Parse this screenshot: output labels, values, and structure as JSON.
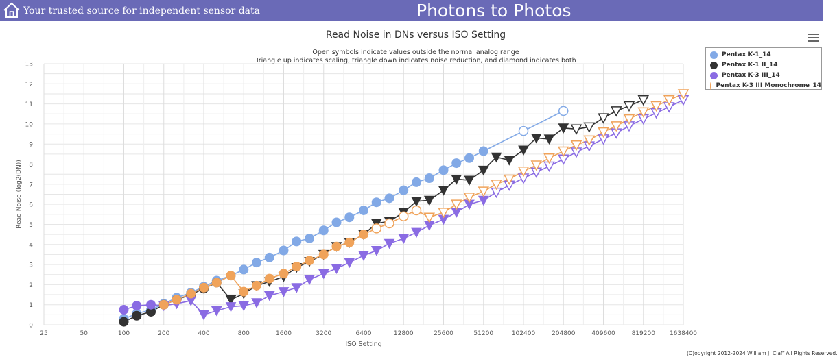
{
  "header": {
    "tagline": "Your trusted source for independent sensor data",
    "brand": "Photons to Photos",
    "home_icon": "home-icon"
  },
  "menu_icon": "hamburger-menu-icon",
  "copyright": "(C)opyright 2012-2024 William J. Claff All Rights Reserved.",
  "colors": {
    "header_bg": "#6a6ab7",
    "grid": "#e2e2e2"
  },
  "chart_data": {
    "type": "line",
    "title": "Read Noise in DNs versus ISO Setting",
    "subtitle_1": "Open symbols indicate values outside the normal analog range",
    "subtitle_2": "Triangle up indicates scaling, triangle down indicates noise reduction, and diamond indicates both",
    "xlabel": "ISO Setting",
    "ylabel": "Read Noise (log2(DN))",
    "x_scale": "log2",
    "xlim": [
      25,
      1638400
    ],
    "ylim": [
      0,
      13
    ],
    "x_ticks": [
      25,
      50,
      100,
      200,
      400,
      800,
      1600,
      3200,
      6400,
      12800,
      25600,
      51200,
      102400,
      204800,
      409600,
      819200,
      1638400
    ],
    "y_ticks": [
      0,
      1,
      2,
      3,
      4,
      5,
      6,
      7,
      8,
      9,
      10,
      11,
      12,
      13
    ],
    "grid": true,
    "legend_position": "top-right",
    "series": [
      {
        "name": "Pentax K-1_14",
        "color": "#82a9e6",
        "line_color": "#82a9e6",
        "points": [
          [
            100,
            0.3,
            "circle",
            "filled"
          ],
          [
            125,
            0.55,
            "circle",
            "filled"
          ],
          [
            160,
            0.75,
            "circle",
            "filled"
          ],
          [
            200,
            1.05,
            "circle",
            "filled"
          ],
          [
            250,
            1.35,
            "circle",
            "filled"
          ],
          [
            320,
            1.6,
            "circle",
            "filled"
          ],
          [
            400,
            1.9,
            "circle",
            "filled"
          ],
          [
            500,
            2.2,
            "circle",
            "filled"
          ],
          [
            640,
            2.45,
            "circle",
            "filled"
          ],
          [
            800,
            2.75,
            "circle",
            "filled"
          ],
          [
            1000,
            3.1,
            "circle",
            "filled"
          ],
          [
            1250,
            3.35,
            "circle",
            "filled"
          ],
          [
            1600,
            3.7,
            "circle",
            "filled"
          ],
          [
            2000,
            4.15,
            "circle",
            "filled"
          ],
          [
            2500,
            4.3,
            "circle",
            "filled"
          ],
          [
            3200,
            4.7,
            "circle",
            "filled"
          ],
          [
            4000,
            5.1,
            "circle",
            "filled"
          ],
          [
            5000,
            5.35,
            "circle",
            "filled"
          ],
          [
            6400,
            5.7,
            "circle",
            "filled"
          ],
          [
            8000,
            6.1,
            "circle",
            "filled"
          ],
          [
            10000,
            6.3,
            "circle",
            "filled"
          ],
          [
            12800,
            6.7,
            "circle",
            "filled"
          ],
          [
            16000,
            7.1,
            "circle",
            "filled"
          ],
          [
            20000,
            7.3,
            "circle",
            "filled"
          ],
          [
            25600,
            7.7,
            "circle",
            "filled"
          ],
          [
            32000,
            8.05,
            "circle",
            "filled"
          ],
          [
            40000,
            8.3,
            "circle",
            "filled"
          ],
          [
            51200,
            8.65,
            "circle",
            "filled"
          ],
          [
            102400,
            9.65,
            "circle",
            "open"
          ],
          [
            204800,
            10.65,
            "circle",
            "open"
          ]
        ]
      },
      {
        "name": "Pentax K-1 II_14",
        "color": "#333333",
        "line_color": "#333333",
        "points": [
          [
            100,
            0.15,
            "circle",
            "filled"
          ],
          [
            125,
            0.45,
            "circle",
            "filled"
          ],
          [
            160,
            0.65,
            "circle",
            "filled"
          ],
          [
            200,
            1.0,
            "circle",
            "filled"
          ],
          [
            250,
            1.25,
            "circle",
            "filled"
          ],
          [
            320,
            1.5,
            "circle",
            "filled"
          ],
          [
            400,
            1.8,
            "circle",
            "filled"
          ],
          [
            500,
            2.1,
            "circle",
            "filled"
          ],
          [
            640,
            1.25,
            "triangle-down",
            "filled"
          ],
          [
            800,
            1.55,
            "triangle-down",
            "filled"
          ],
          [
            1000,
            1.95,
            "triangle-down",
            "filled"
          ],
          [
            1250,
            2.15,
            "triangle-down",
            "filled"
          ],
          [
            1600,
            2.4,
            "triangle-down",
            "filled"
          ],
          [
            2000,
            2.85,
            "triangle-down",
            "filled"
          ],
          [
            2500,
            3.15,
            "triangle-down",
            "filled"
          ],
          [
            3200,
            3.5,
            "triangle-down",
            "filled"
          ],
          [
            4000,
            3.9,
            "triangle-down",
            "filled"
          ],
          [
            5000,
            4.1,
            "triangle-down",
            "filled"
          ],
          [
            6400,
            4.5,
            "triangle-down",
            "filled"
          ],
          [
            8000,
            5.05,
            "triangle-down",
            "filled"
          ],
          [
            10000,
            5.15,
            "triangle-down",
            "filled"
          ],
          [
            12800,
            5.6,
            "triangle-down",
            "filled"
          ],
          [
            16000,
            6.15,
            "triangle-down",
            "filled"
          ],
          [
            20000,
            6.2,
            "triangle-down",
            "filled"
          ],
          [
            25600,
            6.7,
            "triangle-down",
            "filled"
          ],
          [
            32000,
            7.25,
            "triangle-down",
            "filled"
          ],
          [
            40000,
            7.2,
            "triangle-down",
            "filled"
          ],
          [
            51200,
            7.7,
            "triangle-down",
            "filled"
          ],
          [
            64000,
            8.35,
            "triangle-down",
            "filled"
          ],
          [
            80000,
            8.2,
            "triangle-down",
            "filled"
          ],
          [
            102400,
            8.7,
            "triangle-down",
            "filled"
          ],
          [
            128000,
            9.3,
            "triangle-down",
            "filled"
          ],
          [
            160000,
            9.25,
            "triangle-down",
            "filled"
          ],
          [
            204800,
            9.8,
            "triangle-down",
            "filled"
          ],
          [
            256000,
            9.75,
            "triangle-down",
            "open"
          ],
          [
            320000,
            9.85,
            "triangle-down",
            "open"
          ],
          [
            409600,
            10.3,
            "triangle-down",
            "open"
          ],
          [
            512000,
            10.65,
            "triangle-down",
            "open"
          ],
          [
            640000,
            10.9,
            "triangle-down",
            "open"
          ],
          [
            819200,
            11.2,
            "triangle-down",
            "open"
          ]
        ]
      },
      {
        "name": "Pentax K-3 III_14",
        "color": "#8a6be3",
        "line_color": "#8a6be3",
        "points": [
          [
            100,
            0.75,
            "circle",
            "filled"
          ],
          [
            125,
            0.95,
            "circle",
            "filled"
          ],
          [
            160,
            1.0,
            "circle",
            "filled"
          ],
          [
            200,
            0.95,
            "triangle-down",
            "filled"
          ],
          [
            250,
            1.05,
            "triangle-down",
            "filled"
          ],
          [
            320,
            1.2,
            "triangle-down",
            "filled"
          ],
          [
            400,
            0.5,
            "triangle-down",
            "filled"
          ],
          [
            500,
            0.7,
            "triangle-down",
            "filled"
          ],
          [
            640,
            0.9,
            "triangle-down",
            "filled"
          ],
          [
            800,
            0.95,
            "triangle-down",
            "filled"
          ],
          [
            1000,
            1.1,
            "triangle-down",
            "filled"
          ],
          [
            1250,
            1.45,
            "triangle-down",
            "filled"
          ],
          [
            1600,
            1.65,
            "triangle-down",
            "filled"
          ],
          [
            2000,
            1.85,
            "triangle-down",
            "filled"
          ],
          [
            2500,
            2.25,
            "triangle-down",
            "filled"
          ],
          [
            3200,
            2.55,
            "triangle-down",
            "filled"
          ],
          [
            4000,
            2.8,
            "triangle-down",
            "filled"
          ],
          [
            5000,
            3.1,
            "triangle-down",
            "filled"
          ],
          [
            6400,
            3.45,
            "triangle-down",
            "filled"
          ],
          [
            8000,
            3.7,
            "triangle-down",
            "filled"
          ],
          [
            10000,
            4.05,
            "triangle-down",
            "filled"
          ],
          [
            12800,
            4.3,
            "triangle-down",
            "filled"
          ],
          [
            16000,
            4.6,
            "triangle-down",
            "filled"
          ],
          [
            20000,
            4.95,
            "triangle-down",
            "filled"
          ],
          [
            25600,
            5.25,
            "triangle-down",
            "filled"
          ],
          [
            32000,
            5.6,
            "triangle-down",
            "filled"
          ],
          [
            40000,
            6.0,
            "triangle-down",
            "filled"
          ],
          [
            51200,
            6.2,
            "triangle-down",
            "filled"
          ],
          [
            64000,
            6.6,
            "triangle-down",
            "open"
          ],
          [
            80000,
            6.95,
            "triangle-down",
            "open"
          ],
          [
            102400,
            7.3,
            "triangle-down",
            "open"
          ],
          [
            128000,
            7.6,
            "triangle-down",
            "open"
          ],
          [
            160000,
            7.9,
            "triangle-down",
            "open"
          ],
          [
            204800,
            8.25,
            "triangle-down",
            "open"
          ],
          [
            256000,
            8.6,
            "triangle-down",
            "open"
          ],
          [
            320000,
            8.9,
            "triangle-down",
            "open"
          ],
          [
            409600,
            9.25,
            "triangle-down",
            "open"
          ],
          [
            512000,
            9.55,
            "triangle-down",
            "open"
          ],
          [
            640000,
            9.9,
            "triangle-down",
            "open"
          ],
          [
            819200,
            10.25,
            "triangle-down",
            "open"
          ],
          [
            1024000,
            10.55,
            "triangle-down",
            "open"
          ],
          [
            1280000,
            10.85,
            "triangle-down",
            "open"
          ],
          [
            1638400,
            11.2,
            "triangle-down",
            "open"
          ]
        ]
      },
      {
        "name": "Pentax K-3 III Monochrome_14",
        "color": "#f0a35a",
        "line_color": "#f0a35a",
        "points": [
          [
            200,
            1.0,
            "circle",
            "filled"
          ],
          [
            250,
            1.25,
            "circle",
            "filled"
          ],
          [
            320,
            1.55,
            "circle",
            "filled"
          ],
          [
            400,
            1.85,
            "circle",
            "filled"
          ],
          [
            500,
            2.1,
            "circle",
            "filled"
          ],
          [
            640,
            2.45,
            "circle",
            "filled"
          ],
          [
            800,
            1.65,
            "circle",
            "filled"
          ],
          [
            1000,
            1.95,
            "circle",
            "filled"
          ],
          [
            1250,
            2.3,
            "circle",
            "filled"
          ],
          [
            1600,
            2.55,
            "circle",
            "filled"
          ],
          [
            2000,
            2.9,
            "circle",
            "filled"
          ],
          [
            2500,
            3.2,
            "circle",
            "filled"
          ],
          [
            3200,
            3.5,
            "circle",
            "filled"
          ],
          [
            4000,
            3.9,
            "circle",
            "filled"
          ],
          [
            5000,
            4.1,
            "circle",
            "filled"
          ],
          [
            6400,
            4.5,
            "circle",
            "filled"
          ],
          [
            8000,
            4.8,
            "circle",
            "open"
          ],
          [
            10000,
            5.05,
            "circle",
            "open"
          ],
          [
            12800,
            5.4,
            "circle",
            "open"
          ],
          [
            16000,
            5.7,
            "circle",
            "open"
          ],
          [
            20000,
            5.35,
            "triangle-down",
            "open"
          ],
          [
            25600,
            5.6,
            "triangle-down",
            "open"
          ],
          [
            32000,
            6.0,
            "triangle-down",
            "open"
          ],
          [
            40000,
            6.35,
            "triangle-down",
            "open"
          ],
          [
            51200,
            6.65,
            "triangle-down",
            "open"
          ],
          [
            64000,
            7.0,
            "triangle-down",
            "open"
          ],
          [
            80000,
            7.25,
            "triangle-down",
            "open"
          ],
          [
            102400,
            7.65,
            "triangle-down",
            "open"
          ],
          [
            128000,
            7.95,
            "triangle-down",
            "open"
          ],
          [
            160000,
            8.3,
            "triangle-down",
            "open"
          ],
          [
            204800,
            8.65,
            "triangle-down",
            "open"
          ],
          [
            256000,
            8.95,
            "triangle-down",
            "open"
          ],
          [
            320000,
            9.2,
            "triangle-down",
            "open"
          ],
          [
            409600,
            9.6,
            "triangle-down",
            "open"
          ],
          [
            512000,
            9.9,
            "triangle-down",
            "open"
          ],
          [
            640000,
            10.25,
            "triangle-down",
            "open"
          ],
          [
            819200,
            10.6,
            "triangle-down",
            "open"
          ],
          [
            1024000,
            10.9,
            "triangle-down",
            "open"
          ],
          [
            1280000,
            11.2,
            "triangle-down",
            "open"
          ],
          [
            1638400,
            11.5,
            "triangle-down",
            "open"
          ]
        ]
      }
    ]
  }
}
